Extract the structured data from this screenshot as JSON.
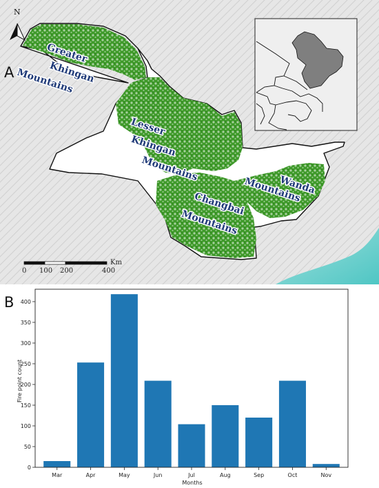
{
  "map": {
    "panel_label": "A",
    "north_label": "N",
    "regions": [
      {
        "lines": [
          "Greater",
          "Khingan",
          "Mountains"
        ]
      },
      {
        "lines": [
          "Lesser",
          "Khingan",
          "Mountains"
        ]
      },
      {
        "lines": [
          "Changbai",
          "Mountains"
        ]
      },
      {
        "lines": [
          "Wanda",
          "Mountains"
        ]
      }
    ],
    "scale": {
      "unit": "Km",
      "ticks": [
        "0",
        "100",
        "200",
        "400"
      ]
    },
    "colors": {
      "forest": "#2e8b1e",
      "province_fill": "#ffffff",
      "relief": "#dcdcdc",
      "sea": "#6fd0cf",
      "inset_fill": "#7f7f7f"
    }
  },
  "chart_data": {
    "type": "bar",
    "panel_label": "B",
    "categories": [
      "Mar",
      "Apr",
      "May",
      "Jun",
      "Jul",
      "Aug",
      "Sep",
      "Oct",
      "Nov"
    ],
    "values": [
      15,
      253,
      418,
      209,
      104,
      150,
      120,
      209,
      8
    ],
    "xlabel": "Months",
    "ylabel": "Fire point count",
    "ylim": [
      0,
      430
    ],
    "yticks": [
      0,
      50,
      100,
      150,
      200,
      250,
      300,
      350,
      400
    ],
    "grid": false,
    "bar_color": "#1f77b4"
  }
}
